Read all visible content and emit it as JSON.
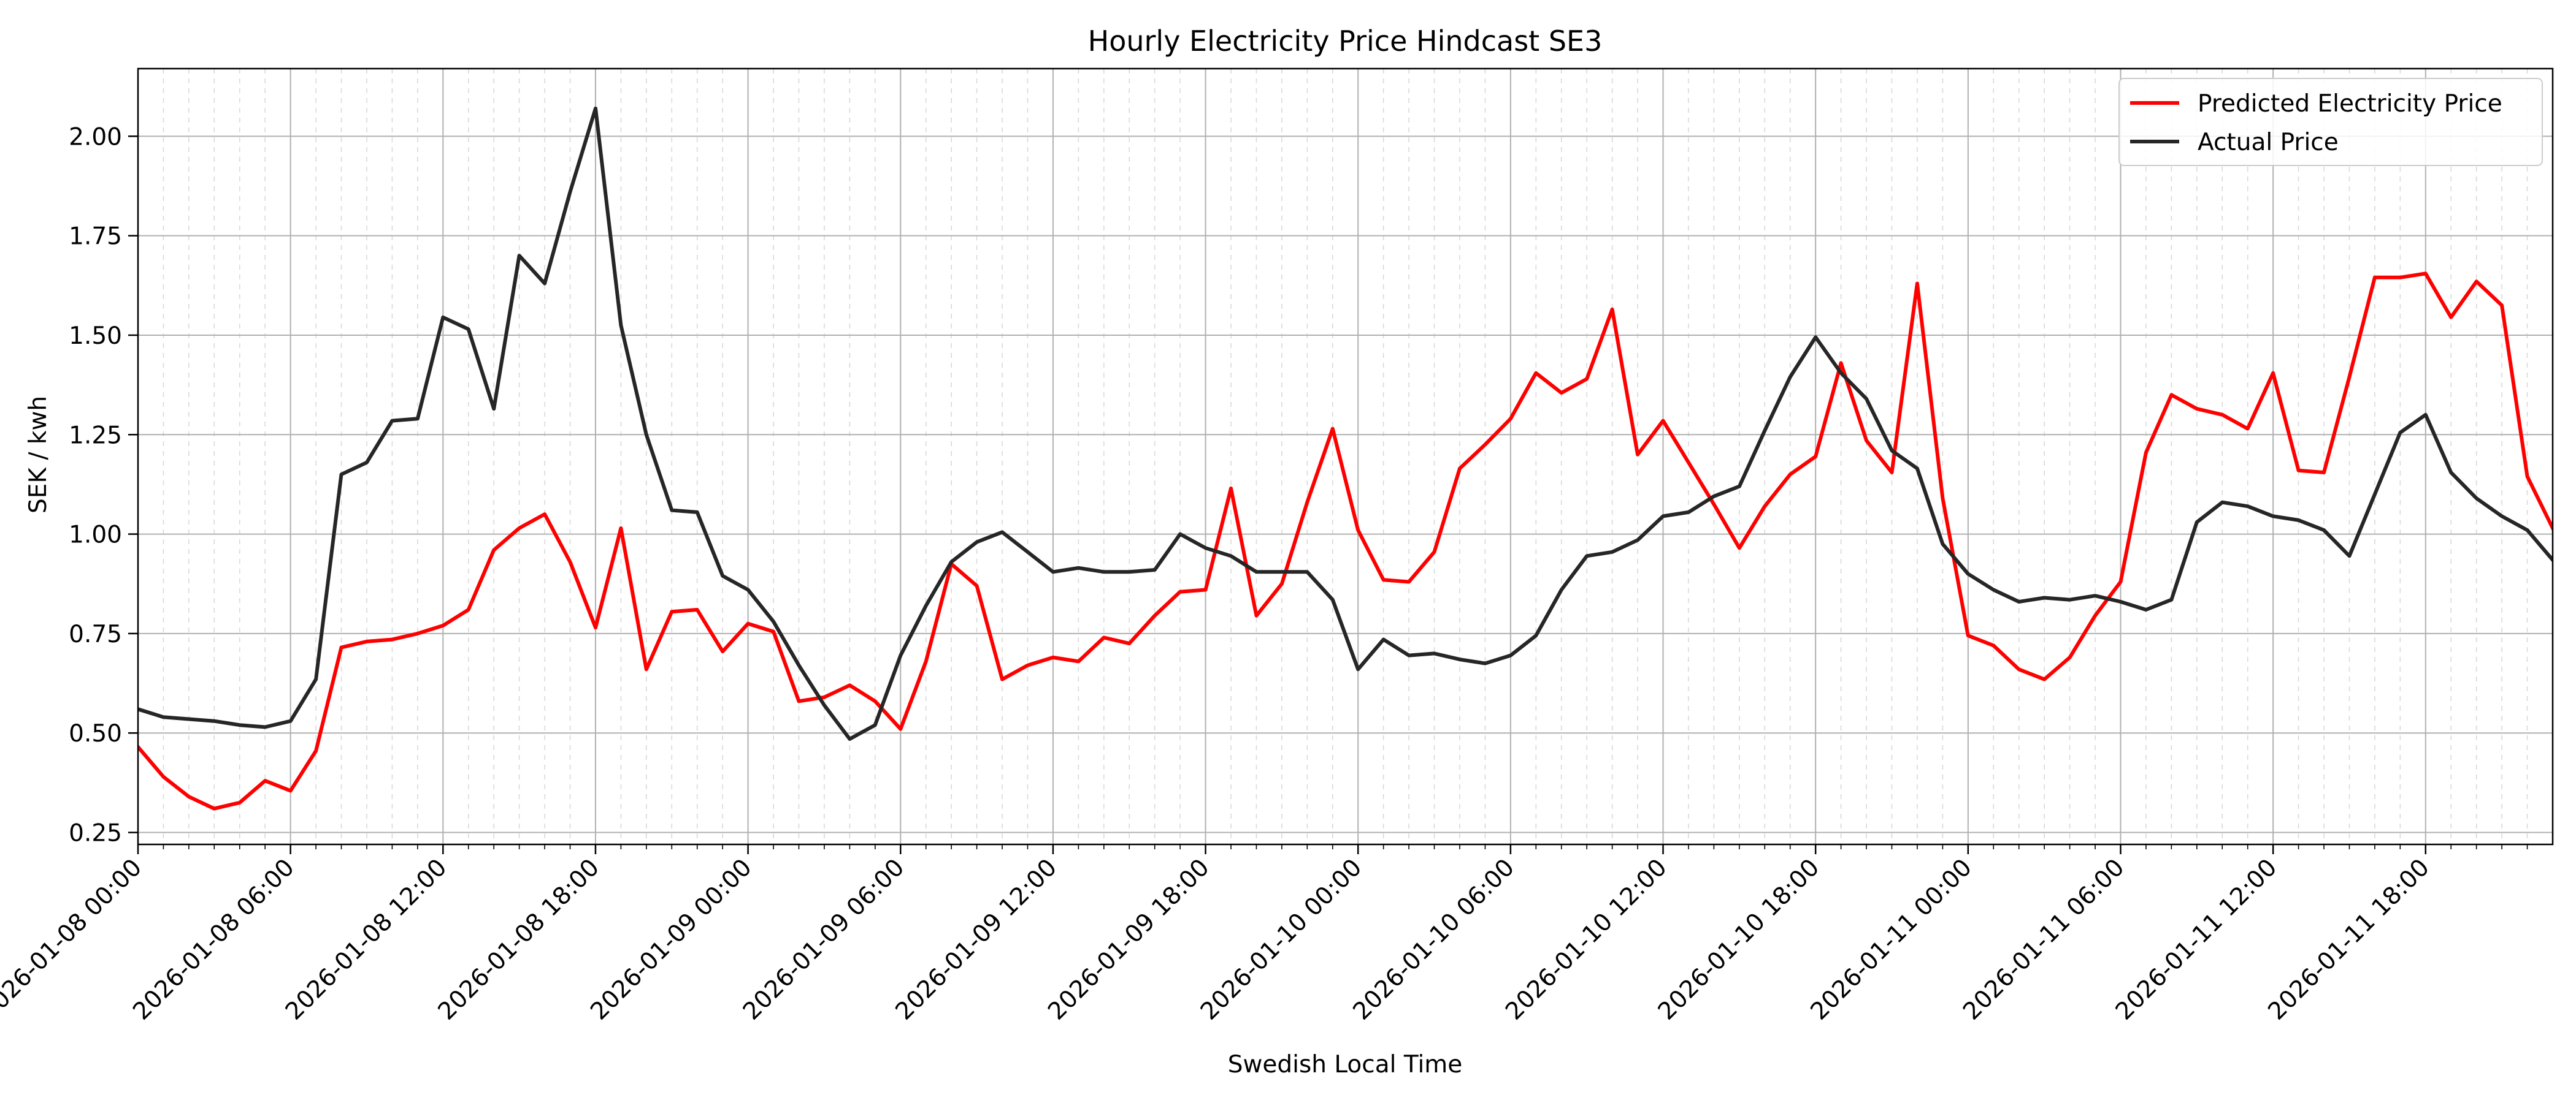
{
  "chart_data": {
    "type": "line",
    "title": "Hourly Electricity Price Hindcast SE3",
    "xlabel": "Swedish Local Time",
    "ylabel": "SEK / kwh",
    "ylim": [
      0.22,
      2.17
    ],
    "x_start": "2026-01-08 00:00",
    "hours": 95,
    "grid": true,
    "legend_position": "top-right",
    "x_ticks": [
      {
        "hour": 0,
        "label": "2026-01-08 00:00"
      },
      {
        "hour": 6,
        "label": "2026-01-08 06:00"
      },
      {
        "hour": 12,
        "label": "2026-01-08 12:00"
      },
      {
        "hour": 18,
        "label": "2026-01-08 18:00"
      },
      {
        "hour": 24,
        "label": "2026-01-09 00:00"
      },
      {
        "hour": 30,
        "label": "2026-01-09 06:00"
      },
      {
        "hour": 36,
        "label": "2026-01-09 12:00"
      },
      {
        "hour": 42,
        "label": "2026-01-09 18:00"
      },
      {
        "hour": 48,
        "label": "2026-01-10 00:00"
      },
      {
        "hour": 54,
        "label": "2026-01-10 06:00"
      },
      {
        "hour": 60,
        "label": "2026-01-10 12:00"
      },
      {
        "hour": 66,
        "label": "2026-01-10 18:00"
      },
      {
        "hour": 72,
        "label": "2026-01-11 00:00"
      },
      {
        "hour": 78,
        "label": "2026-01-11 06:00"
      },
      {
        "hour": 84,
        "label": "2026-01-11 12:00"
      },
      {
        "hour": 90,
        "label": "2026-01-11 18:00"
      }
    ],
    "y_ticks": [
      {
        "value": 0.25,
        "label": "0.25"
      },
      {
        "value": 0.5,
        "label": "0.50"
      },
      {
        "value": 0.75,
        "label": "0.75"
      },
      {
        "value": 1.0,
        "label": "1.00"
      },
      {
        "value": 1.25,
        "label": "1.25"
      },
      {
        "value": 1.5,
        "label": "1.50"
      },
      {
        "value": 1.75,
        "label": "1.75"
      },
      {
        "value": 2.0,
        "label": "2.00"
      }
    ],
    "series": [
      {
        "name": "Predicted Electricity Price",
        "color": "#ff0000",
        "values": [
          0.465,
          0.39,
          0.34,
          0.31,
          0.325,
          0.38,
          0.355,
          0.455,
          0.715,
          0.73,
          0.735,
          0.75,
          0.77,
          0.81,
          0.96,
          1.015,
          1.05,
          0.93,
          0.765,
          1.015,
          0.66,
          0.805,
          0.81,
          0.705,
          0.775,
          0.755,
          0.58,
          0.59,
          0.62,
          0.58,
          0.51,
          0.68,
          0.925,
          0.87,
          0.635,
          0.67,
          0.69,
          0.68,
          0.74,
          0.725,
          0.795,
          0.855,
          0.86,
          1.115,
          0.795,
          0.875,
          1.08,
          1.265,
          1.01,
          0.885,
          0.88,
          0.955,
          1.165,
          1.225,
          1.29,
          1.405,
          1.355,
          1.39,
          1.565,
          1.2,
          1.285,
          1.18,
          1.075,
          0.965,
          1.07,
          1.15,
          1.195,
          1.43,
          1.235,
          1.155,
          1.63,
          1.09,
          0.745,
          0.72,
          0.66,
          0.635,
          0.69,
          0.795,
          0.88,
          1.205,
          1.35,
          1.315,
          1.3,
          1.265,
          1.405,
          1.16,
          1.155,
          1.395,
          1.645,
          1.645,
          1.655,
          1.545,
          1.635,
          1.575,
          1.145,
          1.015
        ]
      },
      {
        "name": "Actual Price",
        "color": "#262626",
        "values": [
          0.56,
          0.54,
          0.535,
          0.53,
          0.52,
          0.515,
          0.53,
          0.635,
          1.15,
          1.18,
          1.285,
          1.29,
          1.545,
          1.515,
          1.315,
          1.7,
          1.63,
          1.86,
          2.07,
          1.525,
          1.25,
          1.06,
          1.055,
          0.895,
          0.86,
          0.78,
          0.67,
          0.57,
          0.485,
          0.52,
          0.695,
          0.82,
          0.93,
          0.98,
          1.005,
          0.955,
          0.905,
          0.915,
          0.905,
          0.905,
          0.91,
          1.0,
          0.965,
          0.945,
          0.905,
          0.905,
          0.905,
          0.835,
          0.66,
          0.735,
          0.695,
          0.7,
          0.685,
          0.675,
          0.695,
          0.745,
          0.86,
          0.945,
          0.955,
          0.985,
          1.045,
          1.055,
          1.095,
          1.12,
          1.26,
          1.395,
          1.495,
          1.405,
          1.34,
          1.21,
          1.165,
          0.975,
          0.9,
          0.86,
          0.83,
          0.84,
          0.835,
          0.845,
          0.83,
          0.81,
          0.835,
          1.03,
          1.08,
          1.07,
          1.045,
          1.035,
          1.01,
          0.945,
          1.1,
          1.255,
          1.3,
          1.155,
          1.09,
          1.045,
          1.01,
          0.935
        ]
      }
    ]
  }
}
